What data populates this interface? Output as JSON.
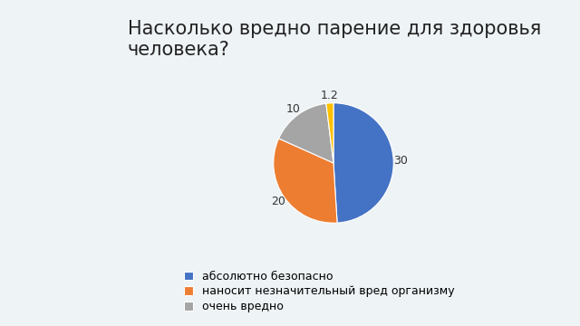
{
  "chart_data": {
    "type": "pie",
    "title": "Насколько вредно парение для здоровья человека?",
    "categories": [
      "абсолютно безопасно",
      "наносит незначительный вред организму",
      "очень вредно",
      null
    ],
    "values": [
      30,
      20,
      10,
      1.2
    ],
    "colors": [
      "#4472c4",
      "#ed7d31",
      "#a5a5a5",
      "#ffc000"
    ],
    "data_labels": true,
    "legend": "lower center"
  }
}
